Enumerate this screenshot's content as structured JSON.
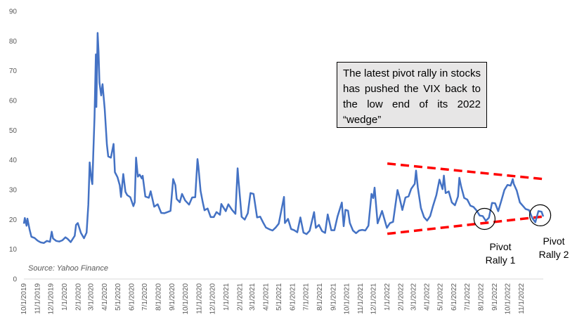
{
  "chart_data": {
    "type": "line",
    "title": "",
    "xlabel": "",
    "ylabel": "",
    "ylim": [
      0,
      90
    ],
    "yticks": [
      0,
      10,
      20,
      30,
      40,
      50,
      60,
      70,
      80,
      90
    ],
    "xlim": [
      "2019-10-01",
      "2022-12-20"
    ],
    "xtick_labels": [
      "10/1/2019",
      "11/1/2019",
      "12/1/2019",
      "1/1/2020",
      "2/1/2020",
      "3/1/2020",
      "4/1/2020",
      "5/1/2020",
      "6/1/2020",
      "7/1/2020",
      "8/1/2020",
      "9/1/2020",
      "10/1/2020",
      "11/1/2020",
      "12/1/2020",
      "1/1/2021",
      "2/1/2021",
      "3/1/2021",
      "4/1/2021",
      "5/1/2021",
      "6/1/2021",
      "7/1/2021",
      "8/1/2021",
      "9/1/2021",
      "10/1/2021",
      "11/1/2021",
      "12/1/2021",
      "1/1/2022",
      "2/1/2022",
      "3/1/2022",
      "4/1/2022",
      "5/1/2022",
      "6/1/2022",
      "7/1/2022",
      "8/1/2022",
      "9/1/2022",
      "10/1/2022",
      "11/1/2022"
    ],
    "grid": false,
    "line_color": "#4472c4",
    "series": [
      {
        "name": "",
        "points": [
          [
            "2019-10-01",
            18.6
          ],
          [
            "2019-10-03",
            20.5
          ],
          [
            "2019-10-07",
            17.9
          ],
          [
            "2019-10-09",
            20.3
          ],
          [
            "2019-10-14",
            16.5
          ],
          [
            "2019-10-18",
            14.2
          ],
          [
            "2019-10-25",
            13.8
          ],
          [
            "2019-11-01",
            12.9
          ],
          [
            "2019-11-08",
            12.3
          ],
          [
            "2019-11-15",
            12.1
          ],
          [
            "2019-11-22",
            12.8
          ],
          [
            "2019-11-29",
            12.5
          ],
          [
            "2019-12-03",
            15.9
          ],
          [
            "2019-12-06",
            13.6
          ],
          [
            "2019-12-13",
            12.8
          ],
          [
            "2019-12-20",
            12.6
          ],
          [
            "2019-12-27",
            13.0
          ],
          [
            "2020-01-03",
            14.0
          ],
          [
            "2020-01-08",
            13.5
          ],
          [
            "2020-01-15",
            12.4
          ],
          [
            "2020-01-24",
            14.5
          ],
          [
            "2020-01-27",
            18.2
          ],
          [
            "2020-01-31",
            18.8
          ],
          [
            "2020-02-07",
            15.5
          ],
          [
            "2020-02-14",
            13.7
          ],
          [
            "2020-02-20",
            15.6
          ],
          [
            "2020-02-24",
            25.0
          ],
          [
            "2020-02-27",
            39.2
          ],
          [
            "2020-03-02",
            33.4
          ],
          [
            "2020-03-04",
            31.9
          ],
          [
            "2020-03-06",
            41.9
          ],
          [
            "2020-03-09",
            54.5
          ],
          [
            "2020-03-12",
            75.5
          ],
          [
            "2020-03-13",
            57.8
          ],
          [
            "2020-03-16",
            82.7
          ],
          [
            "2020-03-18",
            76.5
          ],
          [
            "2020-03-20",
            66.0
          ],
          [
            "2020-03-24",
            61.7
          ],
          [
            "2020-03-27",
            65.5
          ],
          [
            "2020-04-01",
            57.1
          ],
          [
            "2020-04-06",
            45.2
          ],
          [
            "2020-04-09",
            41.2
          ],
          [
            "2020-04-15",
            40.8
          ],
          [
            "2020-04-21",
            45.4
          ],
          [
            "2020-04-24",
            35.9
          ],
          [
            "2020-04-30",
            34.2
          ],
          [
            "2020-05-05",
            31.5
          ],
          [
            "2020-05-08",
            27.6
          ],
          [
            "2020-05-13",
            35.3
          ],
          [
            "2020-05-18",
            29.3
          ],
          [
            "2020-05-22",
            28.2
          ],
          [
            "2020-05-29",
            27.5
          ],
          [
            "2020-06-05",
            24.5
          ],
          [
            "2020-06-08",
            25.8
          ],
          [
            "2020-06-11",
            40.8
          ],
          [
            "2020-06-15",
            34.4
          ],
          [
            "2020-06-19",
            35.1
          ],
          [
            "2020-06-24",
            33.8
          ],
          [
            "2020-06-26",
            34.7
          ],
          [
            "2020-07-02",
            27.7
          ],
          [
            "2020-07-10",
            27.3
          ],
          [
            "2020-07-14",
            29.5
          ],
          [
            "2020-07-22",
            24.3
          ],
          [
            "2020-07-30",
            25.1
          ],
          [
            "2020-08-07",
            22.2
          ],
          [
            "2020-08-14",
            22.1
          ],
          [
            "2020-08-21",
            22.5
          ],
          [
            "2020-08-28",
            22.9
          ],
          [
            "2020-09-03",
            33.6
          ],
          [
            "2020-09-08",
            31.5
          ],
          [
            "2020-09-11",
            26.9
          ],
          [
            "2020-09-18",
            25.8
          ],
          [
            "2020-09-23",
            28.6
          ],
          [
            "2020-09-30",
            26.4
          ],
          [
            "2020-10-09",
            25.0
          ],
          [
            "2020-10-16",
            27.4
          ],
          [
            "2020-10-23",
            27.5
          ],
          [
            "2020-10-28",
            40.3
          ],
          [
            "2020-10-30",
            38.0
          ],
          [
            "2020-11-04",
            29.6
          ],
          [
            "2020-11-09",
            25.8
          ],
          [
            "2020-11-13",
            23.1
          ],
          [
            "2020-11-20",
            23.7
          ],
          [
            "2020-11-27",
            20.8
          ],
          [
            "2020-12-04",
            20.8
          ],
          [
            "2020-12-10",
            22.5
          ],
          [
            "2020-12-18",
            21.6
          ],
          [
            "2020-12-21",
            25.2
          ],
          [
            "2020-12-31",
            22.8
          ],
          [
            "2021-01-06",
            25.1
          ],
          [
            "2021-01-14",
            23.3
          ],
          [
            "2021-01-22",
            21.9
          ],
          [
            "2021-01-27",
            37.2
          ],
          [
            "2021-01-29",
            33.1
          ],
          [
            "2021-02-05",
            20.9
          ],
          [
            "2021-02-12",
            19.97
          ],
          [
            "2021-02-19",
            22.1
          ],
          [
            "2021-02-25",
            28.9
          ],
          [
            "2021-03-04",
            28.6
          ],
          [
            "2021-03-12",
            20.7
          ],
          [
            "2021-03-19",
            20.95
          ],
          [
            "2021-03-26",
            18.9
          ],
          [
            "2021-04-01",
            17.3
          ],
          [
            "2021-04-09",
            16.7
          ],
          [
            "2021-04-16",
            16.3
          ],
          [
            "2021-04-23",
            17.3
          ],
          [
            "2021-04-30",
            18.6
          ],
          [
            "2021-05-12",
            27.6
          ],
          [
            "2021-05-14",
            18.8
          ],
          [
            "2021-05-21",
            20.2
          ],
          [
            "2021-05-28",
            16.8
          ],
          [
            "2021-06-04",
            16.4
          ],
          [
            "2021-06-11",
            15.7
          ],
          [
            "2021-06-18",
            20.7
          ],
          [
            "2021-06-25",
            15.6
          ],
          [
            "2021-07-02",
            15.1
          ],
          [
            "2021-07-09",
            16.2
          ],
          [
            "2021-07-19",
            22.5
          ],
          [
            "2021-07-23",
            17.2
          ],
          [
            "2021-07-30",
            18.2
          ],
          [
            "2021-08-06",
            16.1
          ],
          [
            "2021-08-13",
            15.5
          ],
          [
            "2021-08-19",
            21.7
          ],
          [
            "2021-08-27",
            16.4
          ],
          [
            "2021-09-03",
            16.4
          ],
          [
            "2021-09-10",
            20.95
          ],
          [
            "2021-09-20",
            25.7
          ],
          [
            "2021-09-24",
            17.75
          ],
          [
            "2021-09-28",
            23.25
          ],
          [
            "2021-10-04",
            22.96
          ],
          [
            "2021-10-08",
            18.8
          ],
          [
            "2021-10-15",
            16.3
          ],
          [
            "2021-10-22",
            15.4
          ],
          [
            "2021-10-29",
            16.3
          ],
          [
            "2021-11-05",
            16.5
          ],
          [
            "2021-11-12",
            16.3
          ],
          [
            "2021-11-19",
            17.9
          ],
          [
            "2021-11-26",
            28.6
          ],
          [
            "2021-11-30",
            27.2
          ],
          [
            "2021-12-03",
            30.7
          ],
          [
            "2021-12-10",
            18.7
          ],
          [
            "2021-12-17",
            21.6
          ],
          [
            "2021-12-20",
            22.9
          ],
          [
            "2021-12-31",
            17.2
          ],
          [
            "2022-01-07",
            18.8
          ],
          [
            "2022-01-14",
            19.2
          ],
          [
            "2022-01-24",
            29.9
          ],
          [
            "2022-01-28",
            27.7
          ],
          [
            "2022-02-04",
            23.2
          ],
          [
            "2022-02-11",
            27.4
          ],
          [
            "2022-02-18",
            27.75
          ],
          [
            "2022-02-24",
            30.3
          ],
          [
            "2022-03-04",
            31.98
          ],
          [
            "2022-03-07",
            36.45
          ],
          [
            "2022-03-11",
            30.75
          ],
          [
            "2022-03-18",
            23.87
          ],
          [
            "2022-03-25",
            20.81
          ],
          [
            "2022-04-01",
            19.63
          ],
          [
            "2022-04-08",
            21.16
          ],
          [
            "2022-04-14",
            24.37
          ],
          [
            "2022-04-22",
            28.21
          ],
          [
            "2022-04-29",
            33.4
          ],
          [
            "2022-05-06",
            30.19
          ],
          [
            "2022-05-09",
            34.75
          ],
          [
            "2022-05-13",
            28.87
          ],
          [
            "2022-05-20",
            29.43
          ],
          [
            "2022-05-27",
            25.72
          ],
          [
            "2022-06-03",
            24.79
          ],
          [
            "2022-06-10",
            27.75
          ],
          [
            "2022-06-13",
            34.02
          ],
          [
            "2022-06-17",
            31.13
          ],
          [
            "2022-06-24",
            27.23
          ],
          [
            "2022-07-01",
            26.7
          ],
          [
            "2022-07-08",
            24.64
          ],
          [
            "2022-07-15",
            24.23
          ],
          [
            "2022-07-22",
            23.03
          ],
          [
            "2022-07-29",
            21.33
          ],
          [
            "2022-08-05",
            21.15
          ],
          [
            "2022-08-12",
            19.53
          ],
          [
            "2022-08-19",
            20.6
          ],
          [
            "2022-08-26",
            25.56
          ],
          [
            "2022-09-02",
            25.47
          ],
          [
            "2022-09-09",
            22.79
          ],
          [
            "2022-09-16",
            26.3
          ],
          [
            "2022-09-23",
            29.92
          ],
          [
            "2022-09-30",
            31.62
          ],
          [
            "2022-10-07",
            31.36
          ],
          [
            "2022-10-12",
            33.57
          ],
          [
            "2022-10-14",
            32.02
          ],
          [
            "2022-10-21",
            29.69
          ],
          [
            "2022-10-28",
            25.75
          ],
          [
            "2022-11-04",
            24.55
          ],
          [
            "2022-11-10",
            23.53
          ],
          [
            "2022-11-18",
            23.12
          ],
          [
            "2022-11-25",
            20.5
          ],
          [
            "2022-12-02",
            19.06
          ],
          [
            "2022-12-09",
            22.83
          ],
          [
            "2022-12-16",
            22.62
          ],
          [
            "2022-12-20",
            21.0
          ]
        ]
      }
    ],
    "trendlines": [
      {
        "name": "",
        "color": "#ff0000",
        "dashed": true,
        "from": [
          "2022-01-01",
          38.8
        ],
        "to": [
          "2022-12-20",
          33.6
        ]
      },
      {
        "name": "",
        "color": "#ff0000",
        "dashed": true,
        "from": [
          "2022-01-01",
          15.2
        ],
        "to": [
          "2022-12-20",
          21.0
        ]
      }
    ],
    "circles": [
      {
        "name": "pivot-rally-1",
        "at": [
          "2022-08-09",
          20.2
        ]
      },
      {
        "name": "pivot-rally-2",
        "at": [
          "2022-12-13",
          21.4
        ]
      }
    ]
  },
  "annotations": {
    "callout": "The latest pivot rally in stocks has pushed the VIX back to the low end of its 2022 “wedge”",
    "pivot_1_line1": "Pivot",
    "pivot_1_line2": "Rally 1",
    "pivot_2_line1": "Pivot",
    "pivot_2_line2": "Rally 2",
    "source": "Source: Yahoo Finance"
  }
}
